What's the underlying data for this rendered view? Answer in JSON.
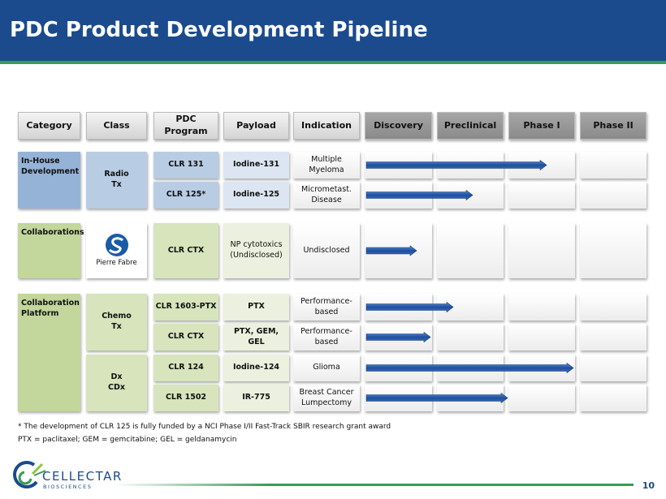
{
  "header": {
    "title": "PDC Product Development Pipeline"
  },
  "columns": [
    "Category",
    "Class",
    "PDC Program",
    "Payload",
    "Indication",
    "Discovery",
    "Preclinical",
    "Phase I",
    "Phase II"
  ],
  "groups": [
    {
      "category": [
        "In-House",
        "Development"
      ],
      "classes": [
        {
          "lines": [
            "Radio",
            "Tx"
          ]
        }
      ],
      "rows": [
        {
          "program": "CLR 131",
          "payload": [
            "Iodine-131"
          ],
          "indication": [
            "Multiple",
            "Myeloma"
          ]
        },
        {
          "program": "CLR 125*",
          "payload": [
            "Iodine-125"
          ],
          "indication": [
            "Micrometast.",
            "Disease"
          ]
        }
      ]
    },
    {
      "category": [
        "Collaborations"
      ],
      "classes": [
        {
          "partner": "Pierre Fabre"
        }
      ],
      "rows": [
        {
          "program": "CLR CTX",
          "payload": [
            "NP cytotoxics",
            "(Undisclosed)"
          ],
          "indication": [
            "Undisclosed"
          ]
        }
      ]
    },
    {
      "category": [
        "Collaboration",
        "Platform"
      ],
      "classes": [
        {
          "lines": [
            "Chemo",
            "Tx"
          ]
        },
        {
          "lines": [
            "Dx",
            "CDx"
          ]
        }
      ],
      "rows": [
        {
          "program": "CLR 1603-PTX",
          "payload": [
            "PTX"
          ],
          "indication": [
            "Performance-",
            "based"
          ]
        },
        {
          "program": "CLR CTX",
          "payload": [
            "PTX, GEM,",
            "GEL"
          ],
          "indication": [
            "Performance-",
            "based"
          ]
        },
        {
          "program": "CLR 124",
          "payload": [
            "Iodine-124"
          ],
          "indication": [
            "Glioma"
          ]
        },
        {
          "program": "CLR 1502",
          "payload": [
            "IR-775"
          ],
          "indication": [
            "Breast Cancer",
            "Lumpectomy"
          ]
        }
      ]
    }
  ],
  "footnotes": [
    "* The development of CLR 125 is fully funded by a NCI Phase I/II Fast-Track SBIR research grant award",
    "PTX = paclitaxel; GEM = gemcitabine; GEL = geldanamycin"
  ],
  "logo": {
    "name": "CELLECTAR",
    "sub": "BIOSCIENCES"
  },
  "page_number": "10"
}
